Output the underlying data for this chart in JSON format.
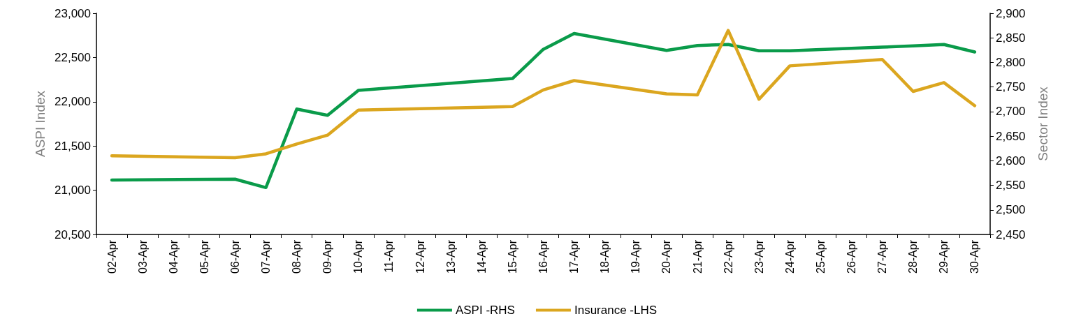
{
  "chart_data": {
    "type": "line",
    "ylabel": "ASPI Index",
    "y2label": "Sector Index",
    "categories": [
      "02-Apr",
      "03-Apr",
      "04-Apr",
      "05-Apr",
      "06-Apr",
      "07-Apr",
      "08-Apr",
      "09-Apr",
      "10-Apr",
      "11-Apr",
      "12-Apr",
      "13-Apr",
      "14-Apr",
      "15-Apr",
      "16-Apr",
      "17-Apr",
      "18-Apr",
      "19-Apr",
      "20-Apr",
      "21-Apr",
      "22-Apr",
      "23-Apr",
      "24-Apr",
      "25-Apr",
      "26-Apr",
      "27-Apr",
      "28-Apr",
      "29-Apr",
      "30-Apr"
    ],
    "series": [
      {
        "name": "ASPI -RHS",
        "color": "#0a9b4a",
        "values": [
          21115,
          null,
          null,
          null,
          21125,
          21030,
          21917,
          21847,
          22128,
          null,
          null,
          null,
          null,
          22262,
          22592,
          22771,
          null,
          null,
          22580,
          22636,
          22647,
          22576,
          22576,
          null,
          null,
          22617,
          22632,
          22647,
          22562
        ]
      },
      {
        "name": "Insurance -LHS",
        "color": "#dba61f",
        "axis": "y2",
        "values": [
          2610,
          null,
          null,
          null,
          2606,
          2614,
          2634,
          2652,
          2703,
          null,
          null,
          null,
          null,
          2710,
          2744,
          2763,
          null,
          null,
          2736,
          2734,
          2865,
          2725,
          2793,
          null,
          null,
          2806,
          2741,
          2759,
          2712
        ]
      }
    ],
    "ylim": [
      20500,
      23000
    ],
    "yticks": [
      {
        "value": 20500,
        "label": "20,500"
      },
      {
        "value": 21000,
        "label": "21,000"
      },
      {
        "value": 21500,
        "label": "21,500"
      },
      {
        "value": 22000,
        "label": "22,000"
      },
      {
        "value": 22500,
        "label": "22,500"
      },
      {
        "value": 23000,
        "label": "23,000"
      }
    ],
    "y2lim": [
      2450,
      2900
    ],
    "y2ticks": [
      {
        "value": 2450,
        "label": "2,450"
      },
      {
        "value": 2500,
        "label": "2,500"
      },
      {
        "value": 2550,
        "label": "2,550"
      },
      {
        "value": 2600,
        "label": "2,600"
      },
      {
        "value": 2650,
        "label": "2,650"
      },
      {
        "value": 2700,
        "label": "2,700"
      },
      {
        "value": 2750,
        "label": "2,750"
      },
      {
        "value": 2800,
        "label": "2,800"
      },
      {
        "value": 2850,
        "label": "2,850"
      },
      {
        "value": 2900,
        "label": "2,900"
      }
    ],
    "grid": false,
    "legend": "bottom",
    "marker": "none",
    "line_style": "solid"
  }
}
